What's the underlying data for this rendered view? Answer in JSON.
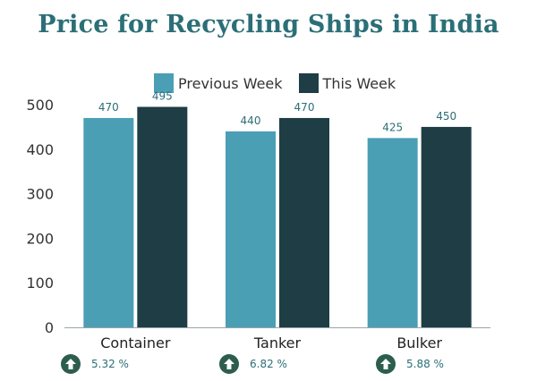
{
  "title": "Price for Recycling Ships in India",
  "colors": {
    "previous": "#4a9fb5",
    "current": "#1e3d45",
    "title": "#2b6f77",
    "arrow": "#2d5e4d"
  },
  "chart_data": {
    "type": "bar",
    "title": "Price for Recycling Ships in India",
    "categories": [
      "Container",
      "Tanker",
      "Bulker"
    ],
    "series": [
      {
        "name": "Previous Week",
        "values": [
          470,
          440,
          425
        ]
      },
      {
        "name": "This Week",
        "values": [
          495,
          470,
          450
        ]
      }
    ],
    "yticks": [
      0,
      100,
      200,
      300,
      400,
      500
    ],
    "ylim": [
      0,
      500
    ],
    "legend": "top-center",
    "grid": false
  },
  "changes": [
    {
      "icon": "up-arrow-icon",
      "text": "5.32 %"
    },
    {
      "icon": "up-arrow-icon",
      "text": "6.82 %"
    },
    {
      "icon": "up-arrow-icon",
      "text": "5.88 %"
    }
  ]
}
